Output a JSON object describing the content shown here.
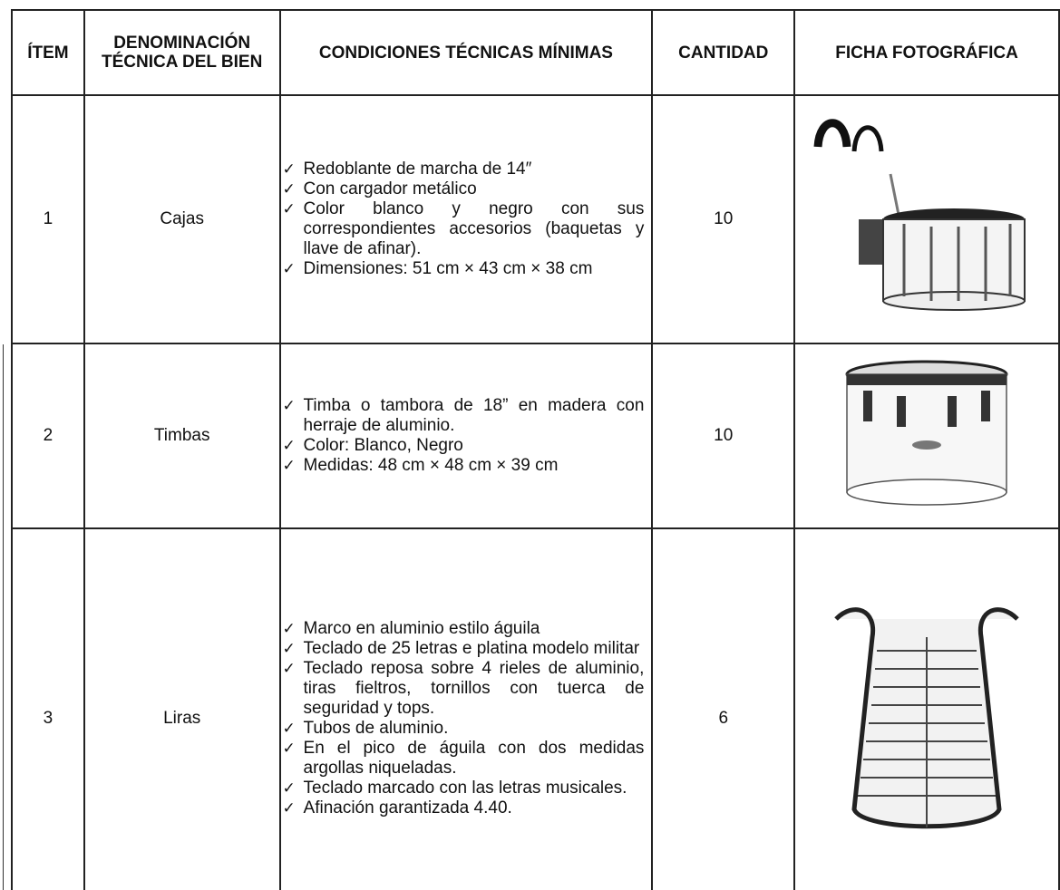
{
  "table": {
    "header": [
      "ÍTEM",
      "DENOMINACIÓN TÉCNICA DEL BIEN",
      "CONDICIONES TÉCNICAS MÍNIMAS",
      "CANTIDAD",
      "FICHA FOTOGRÁFICA"
    ],
    "rows": [
      {
        "item": 1,
        "name": "Cajas",
        "conditions": [
          "Redoblante de marcha de 14″",
          "Con cargador metálico",
          "Color blanco y negro con sus correspondientes accesorios (baquetas y llave de afinar).",
          "Dimensiones:  51 cm × 43 cm × 38 cm"
        ],
        "quantity": 10
      },
      {
        "item": 2,
        "name": "Timbas",
        "conditions": [
          "Timba o tambora de 18” en madera con herraje de aluminio.",
          "Color: Blanco, Negro",
          "Medidas: 48 cm × 48 cm × 39 cm"
        ],
        "quantity": 10
      },
      {
        "item": 3,
        "name": "Liras",
        "conditions": [
          "Marco en aluminio estilo águila",
          "Teclado de 25 letras e platina modelo militar",
          "Teclado reposa sobre 4 rieles de aluminio, tiras fieltros, tornillos con tuerca de seguridad y tops.",
          "Tubos de aluminio.",
          "En el pico de águila con dos medidas argollas niqueladas.",
          "Teclado marcado con las letras musicales.",
          "Afinación garantizada 4.40."
        ],
        "quantity": 6
      }
    ]
  }
}
